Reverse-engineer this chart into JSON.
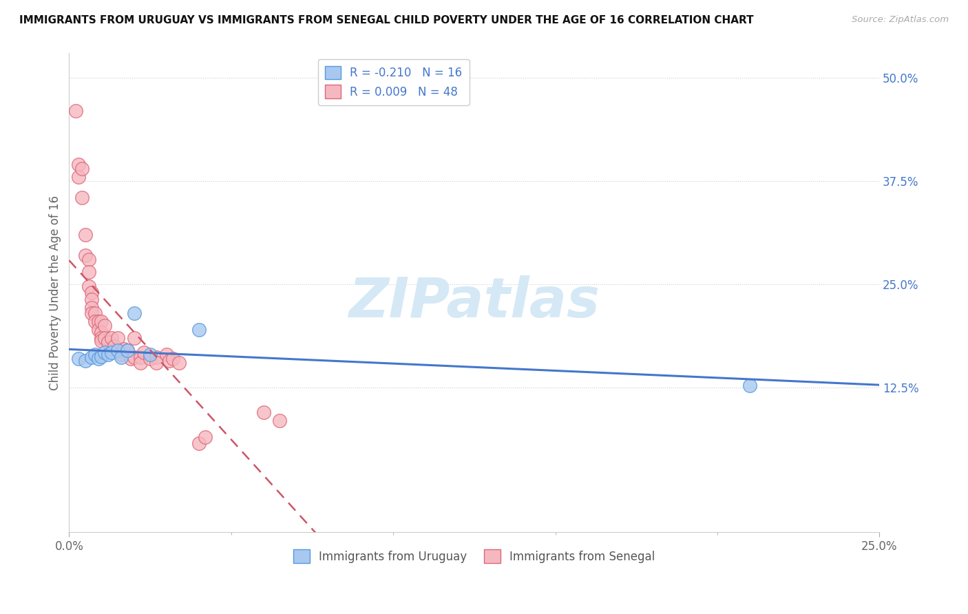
{
  "title": "IMMIGRANTS FROM URUGUAY VS IMMIGRANTS FROM SENEGAL CHILD POVERTY UNDER THE AGE OF 16 CORRELATION CHART",
  "source": "Source: ZipAtlas.com",
  "ylabel": "Child Poverty Under the Age of 16",
  "xlim": [
    0.0,
    0.25
  ],
  "ylim": [
    -0.05,
    0.53
  ],
  "xtick_labels": [
    "0.0%",
    "25.0%"
  ],
  "xtick_positions": [
    0.0,
    0.25
  ],
  "ytick_labels": [
    "12.5%",
    "25.0%",
    "37.5%",
    "50.0%"
  ],
  "ytick_positions": [
    0.125,
    0.25,
    0.375,
    0.5
  ],
  "legend_r_uruguay": "-0.210",
  "legend_n_uruguay": "16",
  "legend_r_senegal": "0.009",
  "legend_n_senegal": "48",
  "uruguay_fill": "#a8c8f0",
  "senegal_fill": "#f5b8c0",
  "uruguay_edge": "#5599dd",
  "senegal_edge": "#dd6677",
  "line_blue": "#4477cc",
  "line_pink": "#cc5566",
  "background_color": "#ffffff",
  "watermark_text": "ZIPatlas",
  "watermark_color": "#d5e8f5",
  "uruguay_x": [
    0.003,
    0.005,
    0.007,
    0.008,
    0.009,
    0.01,
    0.011,
    0.012,
    0.013,
    0.015,
    0.016,
    0.018,
    0.02,
    0.025,
    0.04,
    0.21
  ],
  "uruguay_y": [
    0.16,
    0.158,
    0.162,
    0.165,
    0.16,
    0.163,
    0.168,
    0.165,
    0.168,
    0.17,
    0.162,
    0.17,
    0.215,
    0.165,
    0.195,
    0.128
  ],
  "senegal_x": [
    0.002,
    0.003,
    0.003,
    0.004,
    0.004,
    0.005,
    0.005,
    0.006,
    0.006,
    0.006,
    0.007,
    0.007,
    0.007,
    0.007,
    0.008,
    0.008,
    0.009,
    0.009,
    0.01,
    0.01,
    0.01,
    0.01,
    0.011,
    0.011,
    0.012,
    0.013,
    0.014,
    0.015,
    0.016,
    0.017,
    0.018,
    0.019,
    0.02,
    0.02,
    0.022,
    0.022,
    0.023,
    0.025,
    0.027,
    0.027,
    0.03,
    0.031,
    0.032,
    0.034,
    0.04,
    0.042,
    0.06,
    0.065
  ],
  "senegal_y": [
    0.46,
    0.395,
    0.38,
    0.39,
    0.355,
    0.31,
    0.285,
    0.28,
    0.265,
    0.248,
    0.24,
    0.232,
    0.222,
    0.215,
    0.215,
    0.205,
    0.205,
    0.195,
    0.205,
    0.192,
    0.185,
    0.182,
    0.2,
    0.185,
    0.18,
    0.185,
    0.175,
    0.185,
    0.165,
    0.172,
    0.17,
    0.16,
    0.185,
    0.162,
    0.162,
    0.155,
    0.168,
    0.16,
    0.162,
    0.155,
    0.165,
    0.158,
    0.16,
    0.155,
    0.058,
    0.065,
    0.095,
    0.085
  ]
}
